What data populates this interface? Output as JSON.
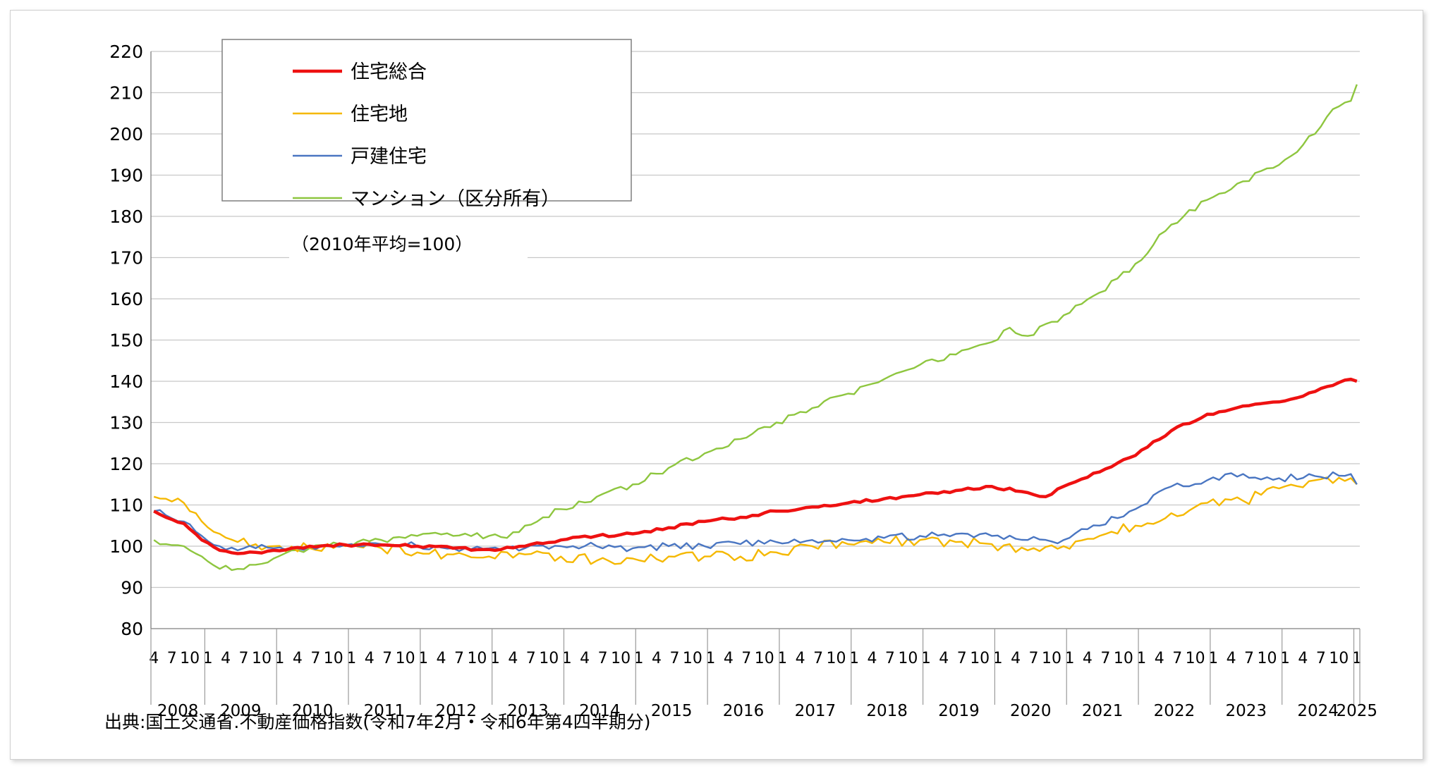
{
  "chart_data": {
    "type": "line",
    "unit_note": "（2010年平均=100）",
    "source": "出典:国土交通省.不動産価格指数(令和7年2月・令和6年第4四半期分)",
    "y_ticks": [
      220,
      210,
      200,
      190,
      180,
      170,
      160,
      150,
      140,
      130,
      120,
      110,
      100,
      90,
      80
    ],
    "ylim": [
      80,
      220
    ],
    "x_start": "2008-04",
    "x_end": "2025-01",
    "month_ticks": [
      "4",
      "7",
      "10",
      "1"
    ],
    "years": [
      "2008",
      "2009",
      "2010",
      "2011",
      "2012",
      "2013",
      "2014",
      "2015",
      "2016",
      "2017",
      "2018",
      "2019",
      "2020",
      "2021",
      "2022",
      "2023",
      "2024",
      "2025"
    ],
    "grid": true,
    "legend_position": "top-left",
    "series": [
      {
        "name": "住宅総合",
        "color": "#ee1111",
        "anchors": [
          [
            "2008-04",
            108.5
          ],
          [
            "2008-06",
            107
          ],
          [
            "2008-09",
            105.5
          ],
          [
            "2008-12",
            101.5
          ],
          [
            "2009-03",
            99
          ],
          [
            "2009-06",
            98.2
          ],
          [
            "2009-09",
            98.5
          ],
          [
            "2009-12",
            99
          ],
          [
            "2010-03",
            99.5
          ],
          [
            "2010-06",
            100
          ],
          [
            "2010-09",
            100.2
          ],
          [
            "2010-12",
            100.3
          ],
          [
            "2011-06",
            100.3
          ],
          [
            "2011-12",
            100
          ],
          [
            "2012-06",
            99.5
          ],
          [
            "2012-12",
            99.2
          ],
          [
            "2013-06",
            100
          ],
          [
            "2013-12",
            101.5
          ],
          [
            "2014-06",
            102.5
          ],
          [
            "2014-12",
            103
          ],
          [
            "2015-06",
            104.5
          ],
          [
            "2015-12",
            106
          ],
          [
            "2016-06",
            107
          ],
          [
            "2016-12",
            108.5
          ],
          [
            "2017-06",
            109.5
          ],
          [
            "2017-12",
            110.5
          ],
          [
            "2018-06",
            111.5
          ],
          [
            "2018-12",
            112.5
          ],
          [
            "2019-06",
            113.5
          ],
          [
            "2019-12",
            114.5
          ],
          [
            "2020-06",
            113
          ],
          [
            "2020-09",
            112
          ],
          [
            "2020-12",
            114.5
          ],
          [
            "2021-06",
            118
          ],
          [
            "2021-12",
            122
          ],
          [
            "2022-06",
            128
          ],
          [
            "2022-12",
            132
          ],
          [
            "2023-06",
            134
          ],
          [
            "2023-12",
            135
          ],
          [
            "2024-06",
            137.5
          ],
          [
            "2024-09",
            139
          ],
          [
            "2024-12",
            140.5
          ],
          [
            "2025-01",
            140
          ]
        ]
      },
      {
        "name": "住宅地",
        "color": "#f5b800",
        "anchors": [
          [
            "2008-04",
            112
          ],
          [
            "2008-06",
            111.5
          ],
          [
            "2008-09",
            110.5
          ],
          [
            "2008-12",
            106
          ],
          [
            "2009-03",
            103
          ],
          [
            "2009-06",
            101
          ],
          [
            "2009-09",
            100.5
          ],
          [
            "2009-12",
            100
          ],
          [
            "2010-06",
            99.5
          ],
          [
            "2010-12",
            100
          ],
          [
            "2011-06",
            99.5
          ],
          [
            "2011-12",
            98.5
          ],
          [
            "2012-06",
            98
          ],
          [
            "2012-12",
            97.5
          ],
          [
            "2013-06",
            98
          ],
          [
            "2013-12",
            97.5
          ],
          [
            "2014-06",
            96.5
          ],
          [
            "2014-12",
            97
          ],
          [
            "2015-06",
            97.5
          ],
          [
            "2015-12",
            97.5
          ],
          [
            "2016-06",
            97.5
          ],
          [
            "2016-12",
            98.5
          ],
          [
            "2017-06",
            100
          ],
          [
            "2017-12",
            100.5
          ],
          [
            "2018-06",
            101
          ],
          [
            "2018-12",
            101.5
          ],
          [
            "2019-06",
            101
          ],
          [
            "2019-12",
            100.5
          ],
          [
            "2020-06",
            99
          ],
          [
            "2020-12",
            100
          ],
          [
            "2021-06",
            102.5
          ],
          [
            "2021-12",
            105
          ],
          [
            "2022-06",
            108
          ],
          [
            "2022-12",
            110.5
          ],
          [
            "2023-06",
            111
          ],
          [
            "2023-12",
            114
          ],
          [
            "2024-06",
            116
          ],
          [
            "2024-12",
            116.5
          ],
          [
            "2025-01",
            115
          ]
        ]
      },
      {
        "name": "戸建住宅",
        "color": "#4a76c2",
        "anchors": [
          [
            "2008-04",
            108.5
          ],
          [
            "2008-06",
            107.5
          ],
          [
            "2008-09",
            106
          ],
          [
            "2008-12",
            102.5
          ],
          [
            "2009-03",
            100
          ],
          [
            "2009-06",
            99
          ],
          [
            "2009-09",
            99.5
          ],
          [
            "2009-12",
            99.5
          ],
          [
            "2010-06",
            100
          ],
          [
            "2010-12",
            100.3
          ],
          [
            "2011-06",
            100.5
          ],
          [
            "2011-12",
            100
          ],
          [
            "2012-06",
            99.5
          ],
          [
            "2012-12",
            99.5
          ],
          [
            "2013-06",
            99.5
          ],
          [
            "2013-12",
            100
          ],
          [
            "2014-06",
            100
          ],
          [
            "2014-12",
            99.5
          ],
          [
            "2015-06",
            100
          ],
          [
            "2015-12",
            100
          ],
          [
            "2016-06",
            100.5
          ],
          [
            "2016-12",
            101
          ],
          [
            "2017-06",
            101.5
          ],
          [
            "2017-12",
            101.5
          ],
          [
            "2018-06",
            102
          ],
          [
            "2018-12",
            102.5
          ],
          [
            "2019-06",
            103
          ],
          [
            "2019-12",
            102.5
          ],
          [
            "2020-06",
            101.5
          ],
          [
            "2020-12",
            101.5
          ],
          [
            "2021-06",
            105
          ],
          [
            "2021-12",
            109
          ],
          [
            "2022-06",
            114.5
          ],
          [
            "2022-12",
            116
          ],
          [
            "2023-06",
            117.5
          ],
          [
            "2023-12",
            116.5
          ],
          [
            "2024-06",
            117
          ],
          [
            "2024-12",
            117.5
          ],
          [
            "2025-01",
            115
          ]
        ]
      },
      {
        "name": "マンション（区分所有）",
        "color": "#8ec63f",
        "anchors": [
          [
            "2008-04",
            101.5
          ],
          [
            "2008-06",
            100.5
          ],
          [
            "2008-09",
            100
          ],
          [
            "2008-12",
            97.5
          ],
          [
            "2009-03",
            94.5
          ],
          [
            "2009-06",
            94.5
          ],
          [
            "2009-09",
            95.5
          ],
          [
            "2009-12",
            97
          ],
          [
            "2010-03",
            99
          ],
          [
            "2010-06",
            99.5
          ],
          [
            "2010-09",
            100
          ],
          [
            "2010-12",
            100.5
          ],
          [
            "2011-06",
            101.5
          ],
          [
            "2011-12",
            102.5
          ],
          [
            "2012-06",
            102.5
          ],
          [
            "2012-12",
            102.5
          ],
          [
            "2013-03",
            102
          ],
          [
            "2013-06",
            105
          ],
          [
            "2013-12",
            109
          ],
          [
            "2014-06",
            112
          ],
          [
            "2014-12",
            115
          ],
          [
            "2015-06",
            119
          ],
          [
            "2015-12",
            122.5
          ],
          [
            "2016-06",
            126
          ],
          [
            "2016-12",
            130
          ],
          [
            "2017-06",
            133.5
          ],
          [
            "2017-12",
            137
          ],
          [
            "2018-06",
            140.5
          ],
          [
            "2018-12",
            144
          ],
          [
            "2019-06",
            146.5
          ],
          [
            "2019-12",
            149.5
          ],
          [
            "2020-03",
            153
          ],
          [
            "2020-06",
            151
          ],
          [
            "2020-12",
            156
          ],
          [
            "2021-06",
            161.5
          ],
          [
            "2021-12",
            168.5
          ],
          [
            "2022-06",
            178
          ],
          [
            "2022-12",
            184
          ],
          [
            "2023-06",
            188.5
          ],
          [
            "2023-12",
            192.5
          ],
          [
            "2024-06",
            200
          ],
          [
            "2024-09",
            206
          ],
          [
            "2024-12",
            208
          ],
          [
            "2025-01",
            212
          ]
        ]
      }
    ]
  }
}
